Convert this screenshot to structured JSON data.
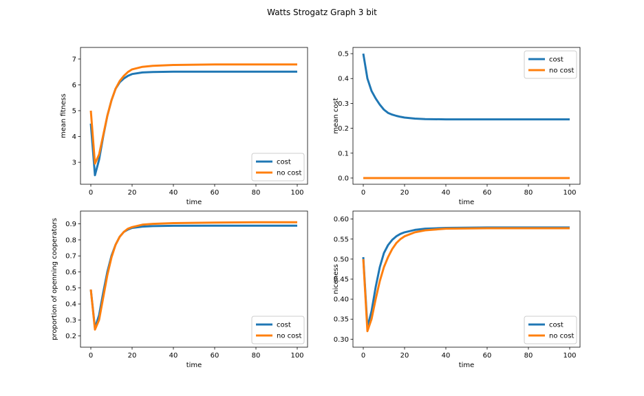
{
  "figure": {
    "suptitle": "Watts Strogatz Graph 3 bit"
  },
  "colors": {
    "cost": "#1f77b4",
    "no_cost": "#ff7f0e"
  },
  "chart_data": [
    {
      "type": "line",
      "id": "fitness",
      "xlabel": "time",
      "ylabel": "mean fitness",
      "xlim": [
        -5,
        105
      ],
      "ylim": [
        2.15,
        7.45
      ],
      "xticks": [
        0,
        20,
        40,
        60,
        80,
        100
      ],
      "yticks": [
        3,
        4,
        5,
        6,
        7
      ],
      "legend_loc": "lower-right",
      "series": [
        {
          "name": "cost",
          "color_key": "cost",
          "x": [
            0,
            2,
            4,
            6,
            8,
            10,
            12,
            14,
            16,
            18,
            20,
            25,
            30,
            40,
            60,
            80,
            100
          ],
          "y": [
            4.5,
            2.5,
            3.1,
            4.0,
            4.8,
            5.4,
            5.85,
            6.1,
            6.25,
            6.35,
            6.42,
            6.48,
            6.5,
            6.51,
            6.51,
            6.51,
            6.51
          ]
        },
        {
          "name": "no cost",
          "color_key": "no_cost",
          "x": [
            0,
            2,
            4,
            6,
            8,
            10,
            12,
            14,
            16,
            18,
            20,
            25,
            30,
            40,
            60,
            80,
            100
          ],
          "y": [
            5.0,
            2.95,
            3.3,
            4.05,
            4.8,
            5.4,
            5.85,
            6.15,
            6.35,
            6.5,
            6.6,
            6.7,
            6.74,
            6.77,
            6.79,
            6.79,
            6.79
          ]
        }
      ]
    },
    {
      "type": "line",
      "id": "cost",
      "xlabel": "time",
      "ylabel": "mean cost",
      "xlim": [
        -5,
        105
      ],
      "ylim": [
        -0.025,
        0.525
      ],
      "xticks": [
        0,
        20,
        40,
        60,
        80,
        100
      ],
      "yticks": [
        0.0,
        0.1,
        0.2,
        0.3,
        0.4,
        0.5
      ],
      "ytick_format": 1,
      "legend_loc": "upper-right",
      "series": [
        {
          "name": "cost",
          "color_key": "cost",
          "x": [
            0,
            2,
            4,
            6,
            8,
            10,
            12,
            14,
            16,
            18,
            20,
            25,
            30,
            40,
            60,
            80,
            100
          ],
          "y": [
            0.5,
            0.4,
            0.35,
            0.32,
            0.295,
            0.275,
            0.262,
            0.255,
            0.25,
            0.246,
            0.243,
            0.239,
            0.237,
            0.236,
            0.236,
            0.236,
            0.236
          ]
        },
        {
          "name": "no cost",
          "color_key": "no_cost",
          "x": [
            0,
            100
          ],
          "y": [
            0.0,
            0.0
          ]
        }
      ]
    },
    {
      "type": "line",
      "id": "cooperators",
      "xlabel": "time",
      "ylabel": "proportion of openning cooperators",
      "xlim": [
        -5,
        105
      ],
      "ylim": [
        0.13,
        0.98
      ],
      "xticks": [
        0,
        20,
        40,
        60,
        80,
        100
      ],
      "yticks": [
        0.2,
        0.3,
        0.4,
        0.5,
        0.6,
        0.7,
        0.8,
        0.9
      ],
      "ytick_format": 1,
      "legend_loc": "lower-right",
      "series": [
        {
          "name": "cost",
          "color_key": "cost",
          "x": [
            0,
            2,
            4,
            6,
            8,
            10,
            12,
            14,
            16,
            18,
            20,
            25,
            30,
            40,
            60,
            80,
            100
          ],
          "y": [
            0.49,
            0.25,
            0.33,
            0.47,
            0.6,
            0.7,
            0.77,
            0.82,
            0.85,
            0.865,
            0.875,
            0.883,
            0.886,
            0.888,
            0.889,
            0.889,
            0.889
          ]
        },
        {
          "name": "no cost",
          "color_key": "no_cost",
          "x": [
            0,
            2,
            4,
            6,
            8,
            10,
            12,
            14,
            16,
            18,
            20,
            25,
            30,
            40,
            60,
            80,
            100
          ],
          "y": [
            0.49,
            0.24,
            0.3,
            0.44,
            0.58,
            0.69,
            0.77,
            0.82,
            0.85,
            0.87,
            0.88,
            0.895,
            0.9,
            0.905,
            0.908,
            0.91,
            0.91
          ]
        }
      ]
    },
    {
      "type": "line",
      "id": "niceness",
      "xlabel": "time",
      "ylabel": "niceness",
      "xlim": [
        -5,
        105
      ],
      "ylim": [
        0.28,
        0.62
      ],
      "xticks": [
        0,
        20,
        40,
        60,
        80,
        100
      ],
      "yticks": [
        0.3,
        0.35,
        0.4,
        0.45,
        0.5,
        0.55,
        0.6
      ],
      "ytick_format": 2,
      "legend_loc": "lower-right",
      "series": [
        {
          "name": "cost",
          "color_key": "cost",
          "x": [
            0,
            2,
            4,
            6,
            8,
            10,
            12,
            14,
            16,
            18,
            20,
            25,
            30,
            40,
            60,
            80,
            100
          ],
          "y": [
            0.505,
            0.33,
            0.37,
            0.43,
            0.48,
            0.515,
            0.535,
            0.548,
            0.557,
            0.563,
            0.567,
            0.573,
            0.576,
            0.578,
            0.579,
            0.579,
            0.579
          ]
        },
        {
          "name": "no cost",
          "color_key": "no_cost",
          "x": [
            0,
            2,
            4,
            6,
            8,
            10,
            12,
            14,
            16,
            18,
            20,
            25,
            30,
            40,
            60,
            80,
            100
          ],
          "y": [
            0.5,
            0.32,
            0.35,
            0.4,
            0.445,
            0.48,
            0.505,
            0.525,
            0.54,
            0.55,
            0.557,
            0.567,
            0.572,
            0.576,
            0.577,
            0.577,
            0.577
          ]
        }
      ]
    }
  ]
}
